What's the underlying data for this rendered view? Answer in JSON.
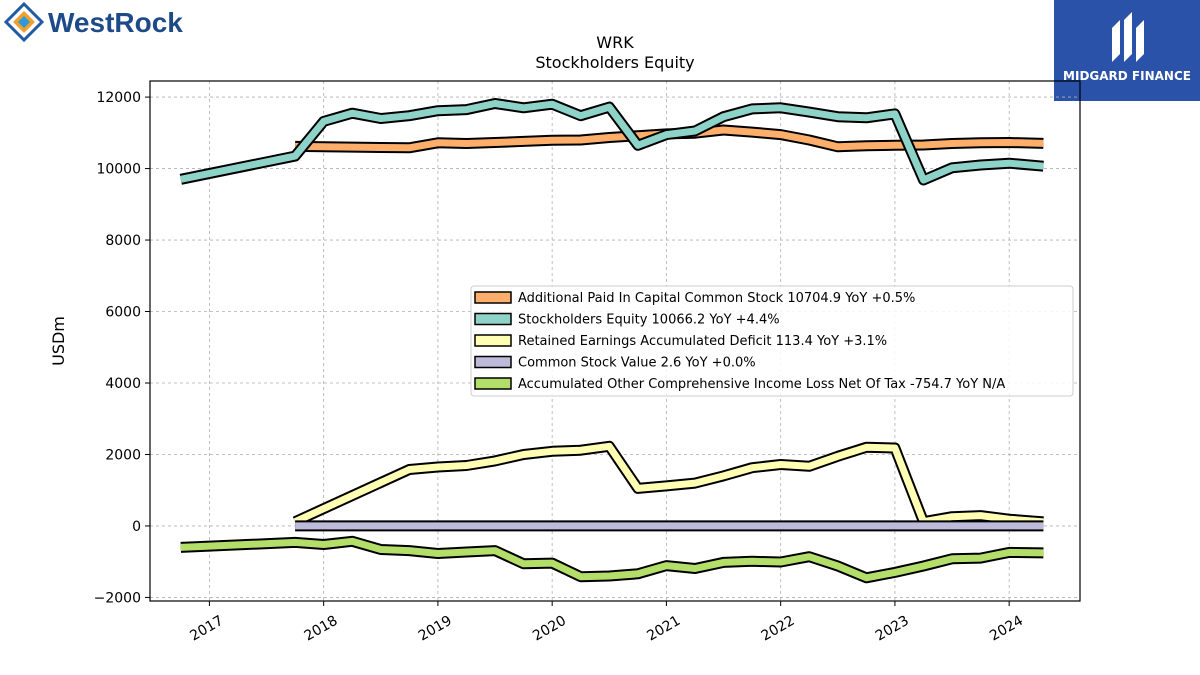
{
  "brand": {
    "left_logo_text": "WestRock",
    "right_logo_text": "MIDGARD FINANCE",
    "left_colors": [
      "#1f5aa6",
      "#f0a030",
      "#2a9ad8"
    ],
    "right_bg": "#2a52a8"
  },
  "chart_data": {
    "type": "line",
    "title": "WRK",
    "subtitle": "Stockholders  Equity",
    "ylabel": "USDm",
    "xlabel": "",
    "ylim": [
      -2100,
      12450
    ],
    "xlim": [
      2016.48,
      2024.62
    ],
    "yticks": [
      -2000,
      0,
      2000,
      4000,
      6000,
      8000,
      10000,
      12000
    ],
    "xticks": [
      2017,
      2018,
      2019,
      2020,
      2021,
      2022,
      2023,
      2024
    ],
    "grid": true,
    "legend_position": "center-right",
    "series": [
      {
        "name": "Additional Paid In Capital Common Stock",
        "legend": "Additional Paid In Capital Common Stock  10704.9 YoY +0.5%",
        "color": "#fdae6b",
        "x": [
          2017.75,
          2018.0,
          2018.25,
          2018.5,
          2018.75,
          2019.0,
          2019.25,
          2019.5,
          2019.75,
          2020.0,
          2020.25,
          2020.5,
          2020.75,
          2021.0,
          2021.25,
          2021.5,
          2021.75,
          2022.0,
          2022.25,
          2022.5,
          2022.75,
          2023.0,
          2023.25,
          2023.5,
          2023.75,
          2024.0,
          2024.3
        ],
        "y": [
          10620,
          10610,
          10600,
          10590,
          10580,
          10720,
          10700,
          10730,
          10760,
          10790,
          10800,
          10870,
          10920,
          10970,
          10990,
          11080,
          11020,
          10950,
          10800,
          10610,
          10640,
          10650,
          10660,
          10700,
          10720,
          10730,
          10705
        ]
      },
      {
        "name": "Stockholders Equity",
        "legend": "Stockholders Equity  10066.2 YoY +4.4%",
        "color": "#8dd3c7",
        "x": [
          2016.75,
          2017.75,
          2018.0,
          2018.25,
          2018.5,
          2018.75,
          2019.0,
          2019.25,
          2019.5,
          2019.75,
          2020.0,
          2020.25,
          2020.5,
          2020.75,
          2021.0,
          2021.25,
          2021.5,
          2021.75,
          2022.0,
          2022.25,
          2022.5,
          2022.75,
          2023.0,
          2023.25,
          2023.5,
          2023.75,
          2024.0,
          2024.3
        ],
        "y": [
          9700,
          10350,
          11320,
          11550,
          11400,
          11480,
          11620,
          11650,
          11820,
          11700,
          11800,
          11480,
          11720,
          10650,
          10950,
          11050,
          11450,
          11670,
          11700,
          11580,
          11450,
          11420,
          11530,
          9680,
          10020,
          10100,
          10150,
          10066
        ]
      },
      {
        "name": "Retained Earnings Accumulated Deficit",
        "legend": "Retained Earnings Accumulated Deficit  113.4 YoY +3.1%",
        "color": "#ffffb3",
        "x": [
          2017.75,
          2018.75,
          2019.0,
          2019.25,
          2019.5,
          2019.75,
          2020.0,
          2020.25,
          2020.5,
          2020.75,
          2021.0,
          2021.25,
          2021.5,
          2021.75,
          2022.0,
          2022.25,
          2022.5,
          2022.75,
          2023.0,
          2023.25,
          2023.5,
          2023.75,
          2024.0,
          2024.3
        ],
        "y": [
          120,
          1580,
          1650,
          1690,
          1820,
          2000,
          2090,
          2120,
          2230,
          1050,
          1120,
          1200,
          1400,
          1630,
          1720,
          1670,
          1950,
          2200,
          2180,
          120,
          260,
          290,
          190,
          113
        ]
      },
      {
        "name": "Common Stock Value",
        "legend": "Common Stock Value  2.6 YoY +0.0%",
        "color": "#bebada",
        "x": [
          2017.75,
          2024.3
        ],
        "y": [
          2.6,
          2.6
        ]
      },
      {
        "name": "Accumulated Other Comprehensive Income Loss Net Of Tax",
        "legend": "Accumulated Other Comprehensive Income Loss Net Of Tax  -754.7 YoY N/A",
        "color": "#b3de69",
        "x": [
          2016.75,
          2017.75,
          2018.0,
          2018.25,
          2018.5,
          2018.75,
          2019.0,
          2019.25,
          2019.5,
          2019.75,
          2020.0,
          2020.25,
          2020.5,
          2020.75,
          2021.0,
          2021.25,
          2021.5,
          2021.75,
          2022.0,
          2022.25,
          2022.5,
          2022.75,
          2023.0,
          2023.25,
          2023.5,
          2023.75,
          2024.0,
          2024.3
        ],
        "y": [
          -600,
          -460,
          -520,
          -430,
          -660,
          -690,
          -770,
          -730,
          -690,
          -1060,
          -1040,
          -1420,
          -1400,
          -1340,
          -1110,
          -1190,
          -1020,
          -990,
          -1010,
          -860,
          -1120,
          -1450,
          -1300,
          -1120,
          -920,
          -900,
          -740,
          -755
        ]
      }
    ]
  }
}
